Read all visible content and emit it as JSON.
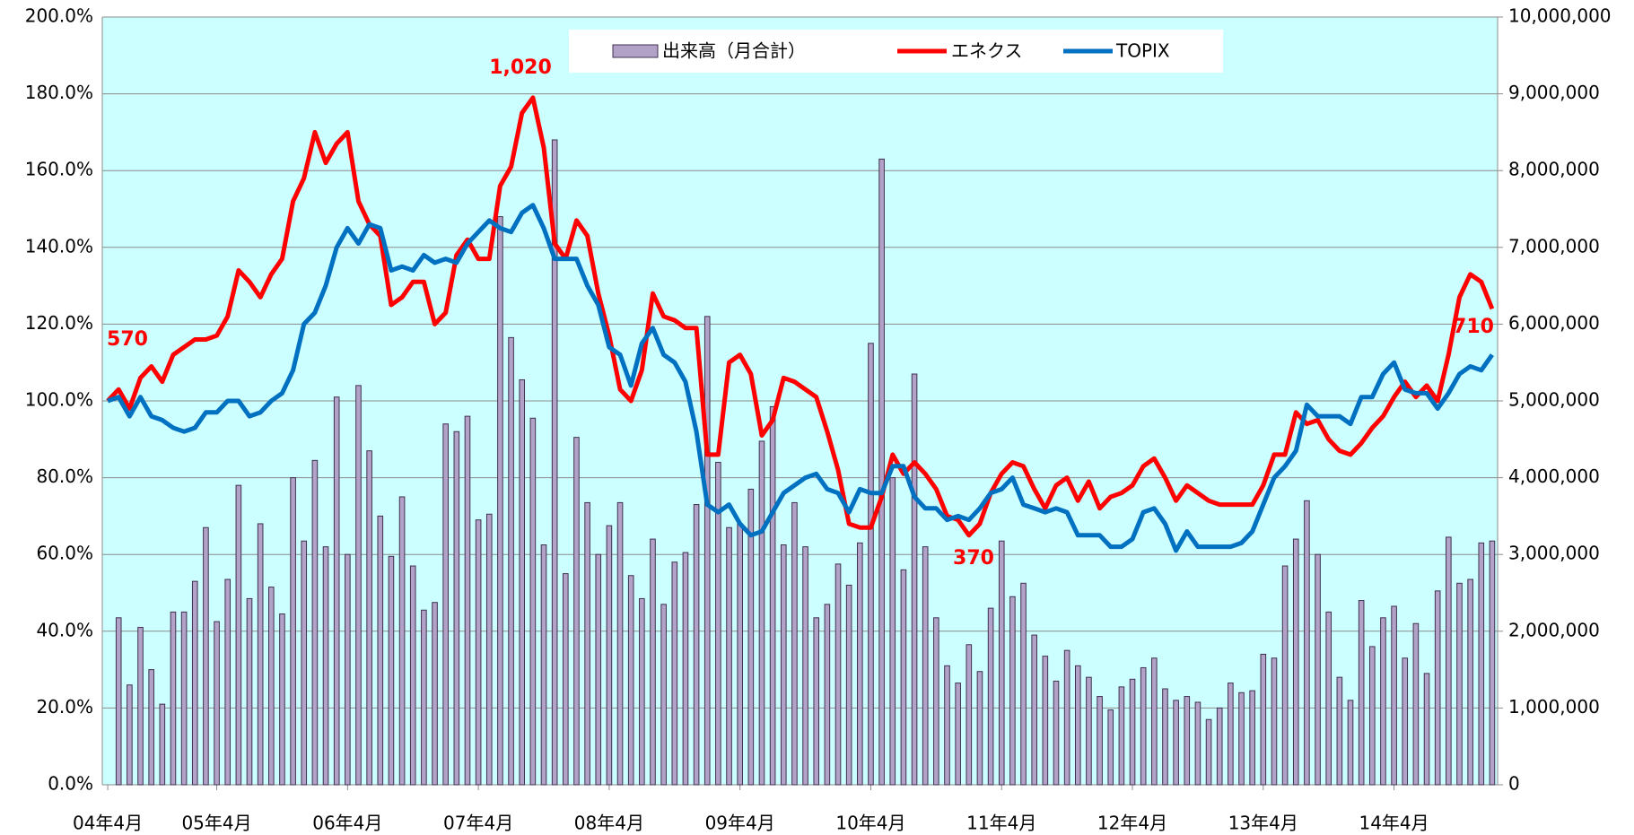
{
  "chart_data": {
    "type": "bar_line",
    "categories": [
      "04年4月",
      null,
      null,
      null,
      null,
      null,
      null,
      null,
      null,
      null,
      "05年4月",
      null,
      null,
      null,
      null,
      null,
      null,
      null,
      null,
      null,
      null,
      null,
      "06年4月",
      null,
      null,
      null,
      null,
      null,
      null,
      null,
      null,
      null,
      null,
      null,
      "07年4月",
      null,
      null,
      null,
      null,
      null,
      null,
      null,
      null,
      null,
      null,
      null,
      "08年4月",
      null,
      null,
      null,
      null,
      null,
      null,
      null,
      null,
      null,
      null,
      null,
      "09年4月",
      null,
      null,
      null,
      null,
      null,
      null,
      null,
      null,
      null,
      null,
      null,
      "10年4月",
      null,
      null,
      null,
      null,
      null,
      null,
      null,
      null,
      null,
      null,
      null,
      "11年4月",
      null,
      null,
      null,
      null,
      null,
      null,
      null,
      null,
      null,
      null,
      null,
      "12年4月",
      null,
      null,
      null,
      null,
      null,
      null,
      null,
      null,
      null,
      null,
      null,
      "13年4月",
      null,
      null,
      null,
      null,
      null,
      null,
      null,
      null,
      null,
      null,
      null,
      "14年4月",
      null,
      null,
      null,
      null,
      null,
      null,
      null,
      null,
      null
    ],
    "series": [
      {
        "name": "出来高（月合計）",
        "kind": "bar",
        "axis": "y2",
        "color": "#b3a2c7",
        "values": [
          null,
          2175000,
          1300000,
          2050000,
          1500000,
          1050000,
          2250000,
          2250000,
          2650000,
          3350000,
          2125000,
          2675000,
          3900000,
          2425000,
          3400000,
          2575000,
          2225000,
          4000000,
          3175000,
          4225000,
          3100000,
          5050000,
          3000000,
          5200000,
          4350000,
          3500000,
          2975000,
          3750000,
          2850000,
          2275000,
          2375000,
          4700000,
          4600000,
          4800000,
          3450000,
          3525000,
          7400000,
          5825000,
          5275000,
          4775000,
          3125000,
          8400000,
          2750000,
          4525000,
          3675000,
          3000000,
          3375000,
          3675000,
          2725000,
          2425000,
          3200000,
          2350000,
          2900000,
          3025000,
          3650000,
          6100000,
          4200000,
          3350000,
          3400000,
          3850000,
          4475000,
          4925000,
          3125000,
          3675000,
          3100000,
          2175000,
          2350000,
          2875000,
          2600000,
          3150000,
          5750000,
          8150000,
          4000000,
          2800000,
          5350000,
          3100000,
          2175000,
          1550000,
          1325000,
          1825000,
          1475000,
          2300000,
          3175000,
          2450000,
          2625000,
          1950000,
          1675000,
          1350000,
          1750000,
          1550000,
          1400000,
          1150000,
          975000,
          1275000,
          1375000,
          1525000,
          1650000,
          1250000,
          1100000,
          1150000,
          1075000,
          850000,
          1000000,
          1325000,
          1200000,
          1225000,
          1700000,
          1650000,
          2850000,
          3200000,
          3700000,
          3000000,
          2250000,
          1400000,
          1100000,
          2400000,
          1800000,
          2175000,
          2325000,
          1650000,
          2100000,
          1450000,
          2525000,
          3225000,
          2625000,
          2675000,
          3150000,
          3175000
        ]
      },
      {
        "name": "エネクス",
        "kind": "line",
        "color": "#ff0000",
        "values": [
          100,
          103,
          98,
          106,
          109,
          105,
          112,
          114,
          116,
          116,
          117,
          122,
          134,
          131,
          127,
          133,
          137,
          152,
          158,
          170,
          162,
          167,
          170,
          152,
          146,
          143,
          125,
          127,
          131,
          131,
          120,
          123,
          138,
          142,
          137,
          137,
          156,
          161,
          175,
          179,
          166,
          141,
          137,
          147,
          143,
          128,
          117,
          103,
          100,
          108,
          128,
          122,
          121,
          119,
          119,
          86,
          86,
          110,
          112,
          107,
          91,
          95,
          106,
          105,
          103,
          101,
          92,
          82,
          68,
          67,
          67,
          75,
          86,
          81,
          84,
          81,
          77,
          70,
          69,
          65,
          68,
          76,
          81,
          84,
          83,
          77,
          72,
          78,
          80,
          74,
          79,
          72,
          75,
          76,
          78,
          83,
          85,
          80,
          74,
          78,
          76,
          74,
          73,
          73,
          73,
          73,
          78,
          86,
          86,
          97,
          94,
          95,
          90,
          87,
          86,
          89,
          93,
          96,
          101,
          105,
          101,
          104,
          100,
          112,
          127,
          133,
          131,
          124
        ]
      },
      {
        "name": "TOPIX",
        "kind": "line",
        "color": "#0070c0",
        "values": [
          100,
          101,
          96,
          101,
          96,
          95,
          93,
          92,
          93,
          97,
          97,
          100,
          100,
          96,
          97,
          100,
          102,
          108,
          120,
          123,
          130,
          140,
          145,
          141,
          146,
          145,
          134,
          135,
          134,
          138,
          136,
          137,
          136,
          141,
          144,
          147,
          145,
          144,
          149,
          151,
          145,
          137,
          137,
          137,
          130,
          125,
          114,
          112,
          104,
          115,
          119,
          112,
          110,
          105,
          92,
          73,
          71,
          73,
          68,
          65,
          66,
          71,
          76,
          78,
          80,
          81,
          77,
          76,
          71,
          77,
          76,
          76,
          83,
          83,
          75,
          72,
          72,
          69,
          70,
          69,
          72,
          76,
          77,
          80,
          73,
          72,
          71,
          72,
          71,
          65,
          65,
          65,
          62,
          62,
          64,
          71,
          72,
          68,
          61,
          66,
          62,
          62,
          62,
          62,
          63,
          66,
          73,
          80,
          83,
          87,
          99,
          96,
          96,
          96,
          94,
          101,
          101,
          107,
          110,
          103,
          102,
          102,
          98,
          102,
          107,
          109,
          108,
          112
        ]
      }
    ],
    "annotations": [
      "570",
      "1,020",
      "370",
      "710"
    ],
    "ylim": [
      0,
      200
    ],
    "yticks": [
      {
        "value": 0,
        "label": "0.0%"
      },
      {
        "value": 20,
        "label": "20.0%"
      },
      {
        "value": 40,
        "label": "40.0%"
      },
      {
        "value": 60,
        "label": "60.0%"
      },
      {
        "value": 80,
        "label": "80.0%"
      },
      {
        "value": 100,
        "label": "100.0%"
      },
      {
        "value": 120,
        "label": "120.0%"
      },
      {
        "value": 140,
        "label": "140.0%"
      },
      {
        "value": 160,
        "label": "160.0%"
      },
      {
        "value": 180,
        "label": "180.0%"
      },
      {
        "value": 200,
        "label": "200.0%"
      }
    ],
    "y2lim": [
      0,
      10000000
    ],
    "y2ticks": [
      0,
      {
        "value": 1000000,
        "label": "1,000,000"
      },
      {
        "value": 2000000,
        "label": "2,000,000"
      },
      {
        "value": 3000000,
        "label": "3,000,000"
      },
      {
        "value": 4000000,
        "label": "4,000,000"
      },
      {
        "value": 5000000,
        "label": "5,000,000"
      },
      {
        "value": 6000000,
        "label": "6,000,000"
      },
      {
        "value": 7000000,
        "label": "7,000,000"
      },
      {
        "value": 8000000,
        "label": "8,000,000"
      },
      {
        "value": 9000000,
        "label": "9,000,000"
      },
      {
        "value": 10000000,
        "label": "10,000,000"
      }
    ],
    "grid": true,
    "background": "#ccffff",
    "legend": "top"
  }
}
